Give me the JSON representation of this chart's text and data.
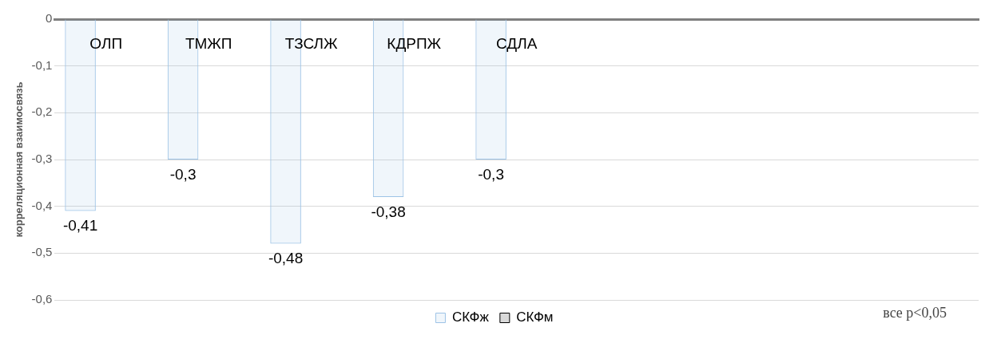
{
  "chart_data": {
    "type": "bar",
    "ylabel": "корреляционная взаимосвязь",
    "categories": [
      "ОЛП",
      "ТМЖП",
      "ТЗСЛЖ",
      "КДРПЖ",
      "СДЛА",
      null,
      null,
      null,
      null
    ],
    "series": [
      {
        "name": "СКФж",
        "color": "#9dc3e6",
        "values": [
          -0.41,
          -0.3,
          -0.48,
          -0.38,
          -0.3,
          null,
          null,
          null,
          null
        ]
      },
      {
        "name": "СКФм",
        "color": "#000000",
        "values": [
          null,
          null,
          null,
          null,
          null,
          null,
          null,
          null,
          null
        ]
      }
    ],
    "ylim": [
      -0.6,
      0
    ],
    "yticks": [
      {
        "value": 0,
        "label": "0"
      },
      {
        "value": -0.1,
        "label": "-0,1"
      },
      {
        "value": -0.2,
        "label": "-0,2"
      },
      {
        "value": -0.3,
        "label": "-0,3"
      },
      {
        "value": -0.4,
        "label": "-0,4"
      },
      {
        "value": -0.5,
        "label": "-0,5"
      },
      {
        "value": -0.6,
        "label": "-0,6"
      }
    ],
    "value_labels": [
      [
        "-0,41",
        "-0,3",
        "-0,48",
        "-0,38",
        "-0,3",
        null,
        null,
        null,
        null
      ],
      [
        null,
        null,
        null,
        null,
        null,
        null,
        null,
        null,
        null
      ]
    ],
    "grid": "y",
    "legend": "bottom",
    "annotations": [
      "все p<0,05"
    ]
  }
}
